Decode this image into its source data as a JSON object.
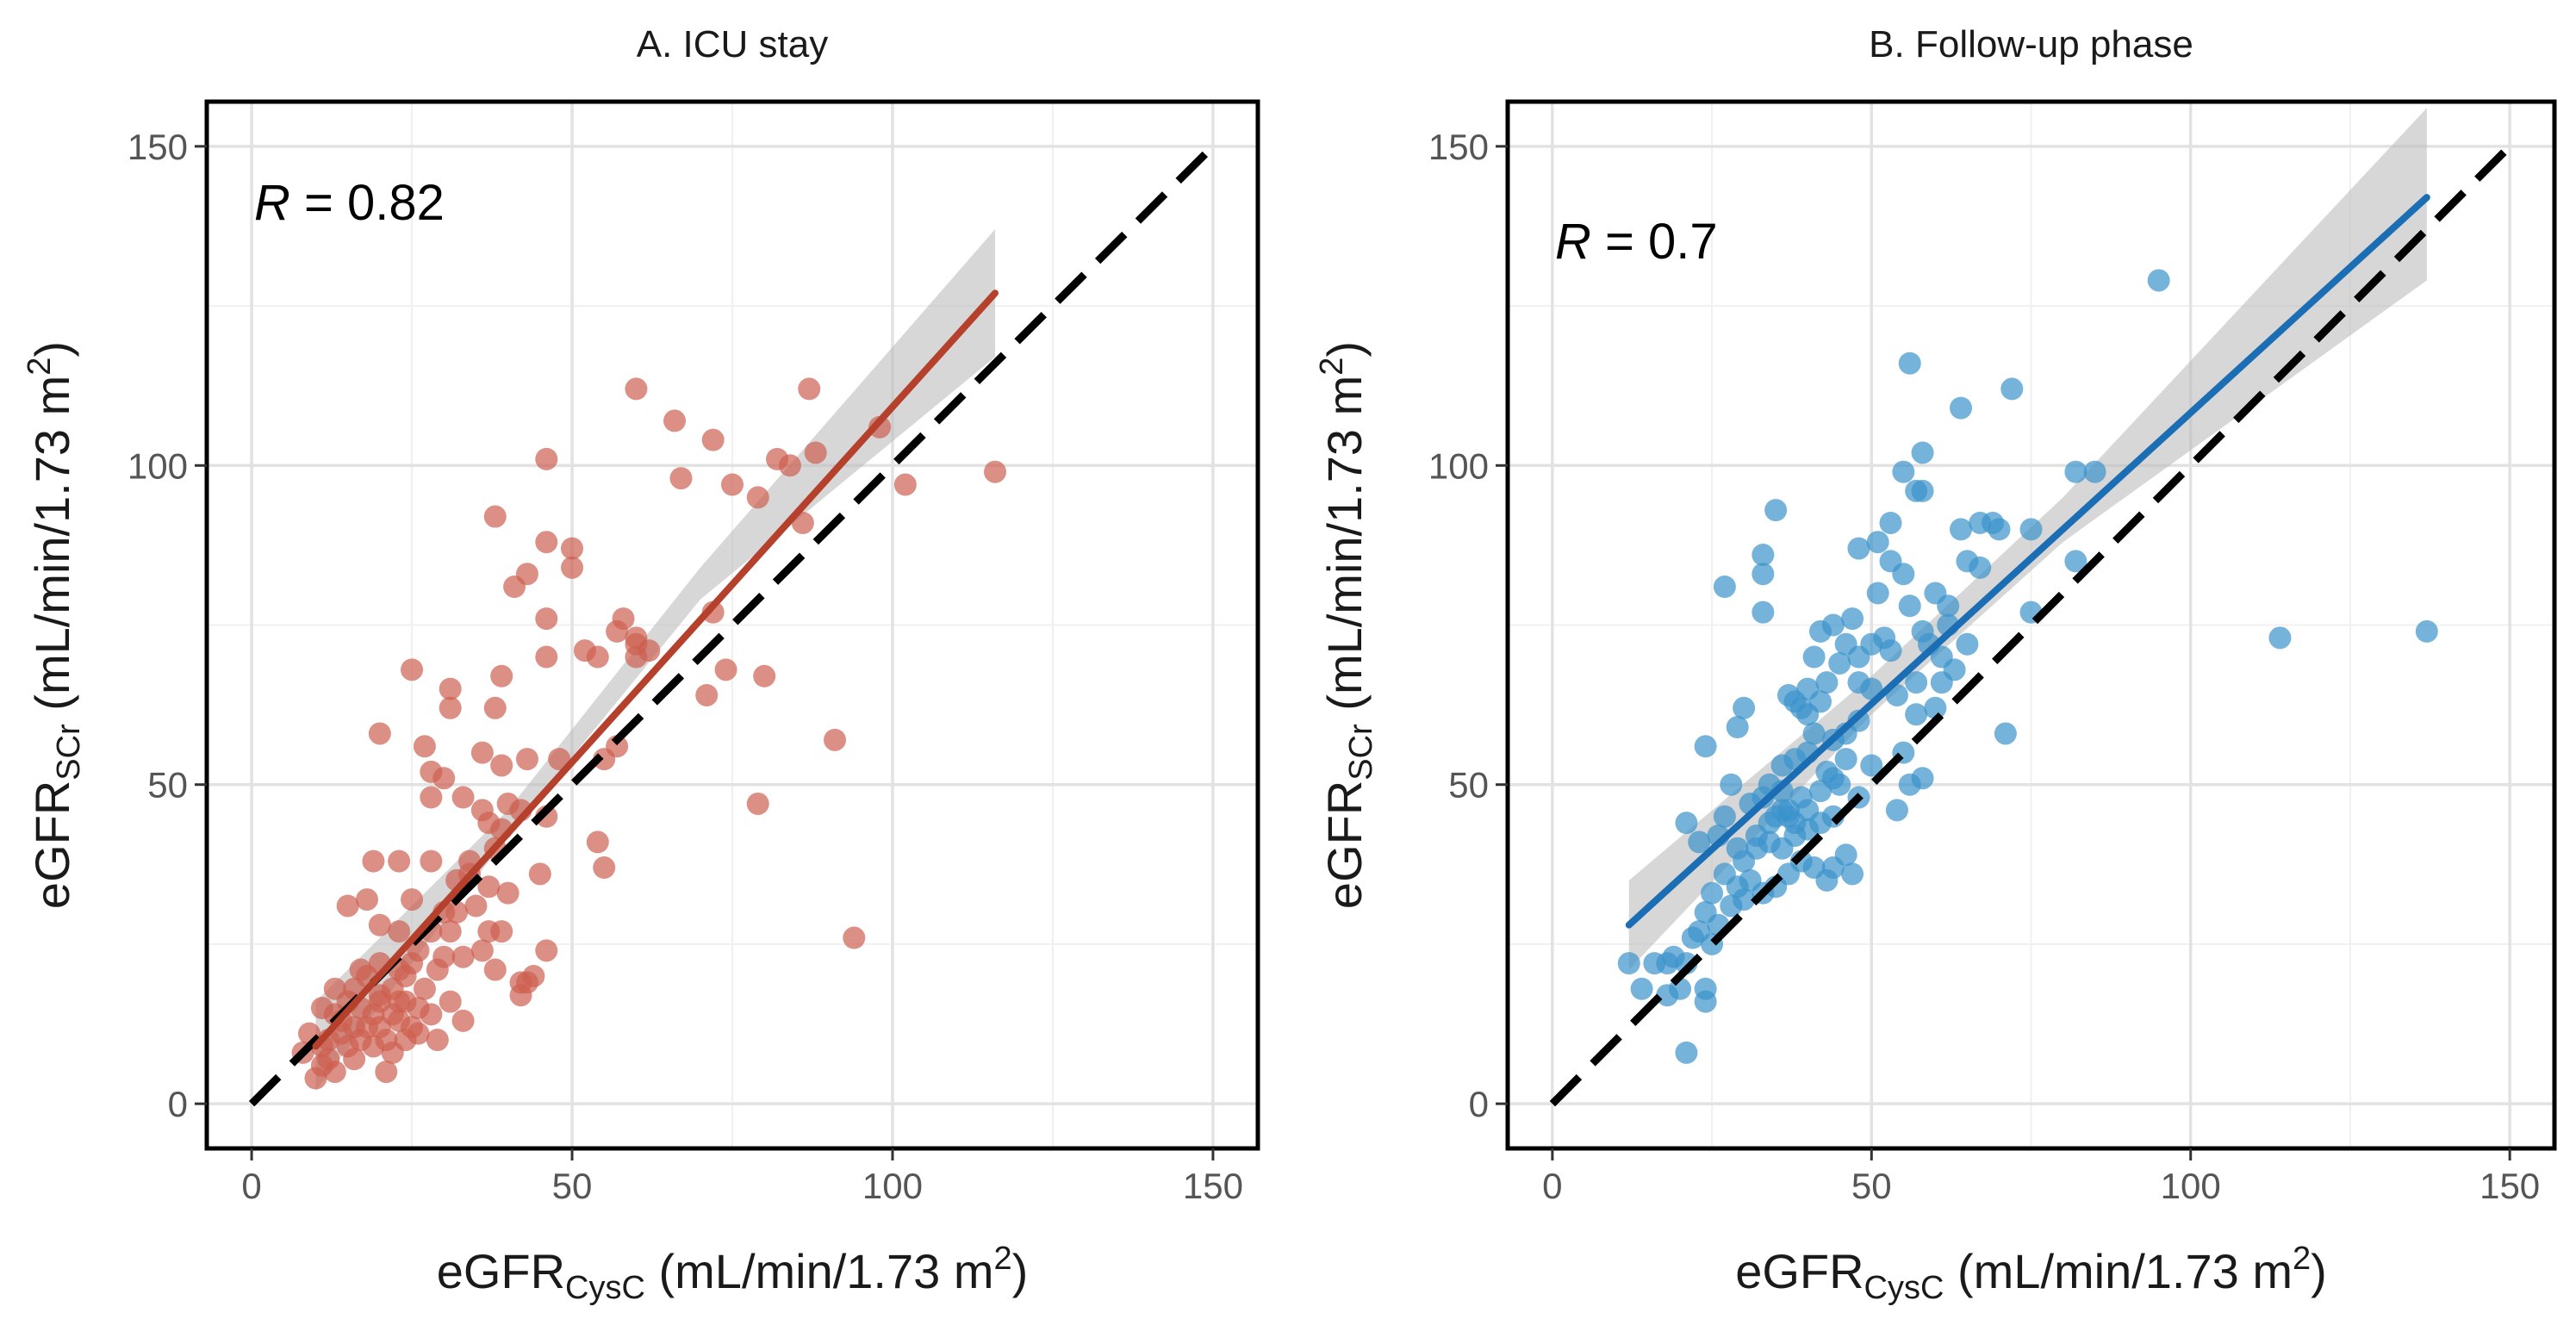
{
  "chart_data": [
    {
      "type": "scatter",
      "panel": "A",
      "title": "A. ICU stay",
      "xlabel_main": "eGFR",
      "xlabel_sub": "CysC",
      "xlabel_unit": "(mL/min/1.73 m",
      "xlabel_sup": "2",
      "xlabel_close": ")",
      "ylabel_main": "eGFR",
      "ylabel_sub": "SCr",
      "ylabel_unit": "(mL/min/1.73 m",
      "ylabel_sup": "2",
      "ylabel_close": ")",
      "xlim": [
        -7,
        157
      ],
      "ylim": [
        -7,
        157
      ],
      "xticks": [
        0,
        50,
        100,
        150
      ],
      "yticks": [
        0,
        50,
        100,
        150
      ],
      "grid": true,
      "r_label": "R",
      "r_value": "= 0.82",
      "identity_line": {
        "x": [
          0,
          150
        ],
        "y": [
          0,
          150
        ],
        "style": "dashed",
        "color": "#000000"
      },
      "fit_line": {
        "x": [
          10,
          116
        ],
        "y": [
          9,
          127
        ],
        "color": "#b5412c"
      },
      "confidence_band": {
        "x": [
          10,
          40,
          70,
          116
        ],
        "lower": [
          2,
          42,
          79,
          117
        ],
        "upper": [
          16,
          46,
          84,
          137
        ]
      },
      "point_color": "#cd6050",
      "points": [
        [
          60,
          112
        ],
        [
          66,
          107
        ],
        [
          72,
          104
        ],
        [
          87,
          112
        ],
        [
          98,
          106
        ],
        [
          102,
          97
        ],
        [
          116,
          99
        ],
        [
          82,
          101
        ],
        [
          84,
          100
        ],
        [
          88,
          102
        ],
        [
          79,
          95
        ],
        [
          86,
          91
        ],
        [
          67,
          98
        ],
        [
          75,
          97
        ],
        [
          46,
          101
        ],
        [
          38,
          92
        ],
        [
          46,
          88
        ],
        [
          50,
          87
        ],
        [
          50,
          84
        ],
        [
          43,
          83
        ],
        [
          41,
          81
        ],
        [
          58,
          76
        ],
        [
          57,
          74
        ],
        [
          60,
          73
        ],
        [
          60,
          72
        ],
        [
          62,
          71
        ],
        [
          60,
          70
        ],
        [
          52,
          71
        ],
        [
          46,
          76
        ],
        [
          72,
          77
        ],
        [
          71,
          64
        ],
        [
          74,
          68
        ],
        [
          80,
          67
        ],
        [
          46,
          70
        ],
        [
          54,
          70
        ],
        [
          57,
          56
        ],
        [
          55,
          54
        ],
        [
          48,
          54
        ],
        [
          43,
          54
        ],
        [
          39,
          53
        ],
        [
          40,
          47
        ],
        [
          42,
          46
        ],
        [
          46,
          45
        ],
        [
          54,
          41
        ],
        [
          55,
          37
        ],
        [
          79,
          47
        ],
        [
          91,
          57
        ],
        [
          94,
          26
        ],
        [
          20,
          58
        ],
        [
          25,
          68
        ],
        [
          31,
          65
        ],
        [
          39,
          67
        ],
        [
          38,
          62
        ],
        [
          31,
          62
        ],
        [
          36,
          55
        ],
        [
          28,
          52
        ],
        [
          30,
          51
        ],
        [
          33,
          48
        ],
        [
          37,
          44
        ],
        [
          39,
          43
        ],
        [
          34,
          36
        ],
        [
          37,
          34
        ],
        [
          40,
          33
        ],
        [
          45,
          36
        ],
        [
          46,
          24
        ],
        [
          36,
          24
        ],
        [
          38,
          21
        ],
        [
          37,
          27
        ],
        [
          39,
          27
        ],
        [
          43,
          19
        ],
        [
          42,
          17
        ],
        [
          42,
          19
        ],
        [
          44,
          20
        ],
        [
          19,
          38
        ],
        [
          23,
          38
        ],
        [
          28,
          38
        ],
        [
          25,
          32
        ],
        [
          18,
          32
        ],
        [
          15,
          31
        ],
        [
          20,
          28
        ],
        [
          23,
          27
        ],
        [
          28,
          27
        ],
        [
          31,
          27
        ],
        [
          35,
          31
        ],
        [
          26,
          24
        ],
        [
          30,
          23
        ],
        [
          33,
          23
        ],
        [
          27,
          18
        ],
        [
          29,
          21
        ],
        [
          31,
          16
        ],
        [
          33,
          13
        ],
        [
          29,
          10
        ],
        [
          26,
          11
        ],
        [
          26,
          15
        ],
        [
          25,
          12
        ],
        [
          23,
          13
        ],
        [
          22,
          8
        ],
        [
          21,
          10
        ],
        [
          20,
          12
        ],
        [
          19,
          14
        ],
        [
          17,
          15
        ],
        [
          16,
          12
        ],
        [
          15,
          9
        ],
        [
          14,
          13
        ],
        [
          13,
          18
        ],
        [
          12,
          10
        ],
        [
          11,
          9
        ],
        [
          11,
          6
        ],
        [
          10,
          4
        ],
        [
          13,
          5
        ],
        [
          9,
          11
        ],
        [
          8,
          8
        ],
        [
          18,
          20
        ],
        [
          20,
          22
        ],
        [
          22,
          18
        ],
        [
          23,
          16
        ],
        [
          24,
          16
        ],
        [
          16,
          7
        ],
        [
          19,
          9
        ],
        [
          24,
          20
        ],
        [
          13,
          14
        ],
        [
          22,
          14
        ],
        [
          16,
          18
        ],
        [
          20,
          16
        ],
        [
          25,
          22
        ],
        [
          28,
          14
        ],
        [
          30,
          30
        ],
        [
          32,
          35
        ],
        [
          34,
          38
        ],
        [
          36,
          46
        ],
        [
          38,
          40
        ],
        [
          28,
          48
        ],
        [
          27,
          56
        ],
        [
          32,
          30
        ],
        [
          24,
          10
        ],
        [
          14,
          11
        ],
        [
          18,
          12
        ],
        [
          20,
          17
        ],
        [
          17,
          21
        ],
        [
          12,
          7
        ],
        [
          15,
          16
        ],
        [
          21,
          5
        ],
        [
          11,
          15
        ],
        [
          17,
          10
        ],
        [
          23,
          21
        ]
      ]
    },
    {
      "type": "scatter",
      "panel": "B",
      "title": "B. Follow-up phase",
      "xlabel_main": "eGFR",
      "xlabel_sub": "CysC",
      "xlabel_unit": "(mL/min/1.73 m",
      "xlabel_sup": "2",
      "xlabel_close": ")",
      "ylabel_main": "eGFR",
      "ylabel_sub": "SCr",
      "ylabel_unit": "(mL/min/1.73 m",
      "ylabel_sup": "2",
      "ylabel_close": ")",
      "xlim": [
        -7,
        157
      ],
      "ylim": [
        -7,
        157
      ],
      "xticks": [
        0,
        50,
        100,
        150
      ],
      "yticks": [
        0,
        50,
        100,
        150
      ],
      "grid": true,
      "r_label": "R",
      "r_value": "= 0.7",
      "identity_line": {
        "x": [
          0,
          150
        ],
        "y": [
          0,
          150
        ],
        "style": "dashed",
        "color": "#000000"
      },
      "fit_line": {
        "x": [
          12,
          137
        ],
        "y": [
          28,
          142
        ],
        "color": "#1c6eb4"
      },
      "confidence_band": {
        "x": [
          12,
          50,
          80,
          137
        ],
        "lower": [
          21,
          61,
          88,
          129
        ],
        "upper": [
          35,
          67,
          95,
          156
        ]
      },
      "point_color": "#3a93cc",
      "points": [
        [
          95,
          129
        ],
        [
          56,
          116
        ],
        [
          72,
          112
        ],
        [
          64,
          109
        ],
        [
          58,
          102
        ],
        [
          55,
          99
        ],
        [
          57,
          96
        ],
        [
          58,
          96
        ],
        [
          53,
          91
        ],
        [
          51,
          88
        ],
        [
          35,
          93
        ],
        [
          33,
          86
        ],
        [
          33,
          83
        ],
        [
          27,
          81
        ],
        [
          33,
          77
        ],
        [
          48,
          87
        ],
        [
          53,
          85
        ],
        [
          55,
          83
        ],
        [
          60,
          80
        ],
        [
          62,
          78
        ],
        [
          64,
          90
        ],
        [
          67,
          91
        ],
        [
          69,
          91
        ],
        [
          70,
          90
        ],
        [
          65,
          85
        ],
        [
          67,
          84
        ],
        [
          75,
          90
        ],
        [
          82,
          99
        ],
        [
          85,
          99
        ],
        [
          82,
          85
        ],
        [
          75,
          77
        ],
        [
          114,
          73
        ],
        [
          137,
          74
        ],
        [
          71,
          58
        ],
        [
          56,
          78
        ],
        [
          58,
          74
        ],
        [
          59,
          72
        ],
        [
          61,
          70
        ],
        [
          63,
          68
        ],
        [
          61,
          66
        ],
        [
          65,
          72
        ],
        [
          62,
          75
        ],
        [
          57,
          61
        ],
        [
          54,
          64
        ],
        [
          52,
          73
        ],
        [
          50,
          72
        ],
        [
          47,
          76
        ],
        [
          44,
          75
        ],
        [
          42,
          74
        ],
        [
          46,
          72
        ],
        [
          45,
          69
        ],
        [
          41,
          70
        ],
        [
          40,
          65
        ],
        [
          38,
          63
        ],
        [
          40,
          61
        ],
        [
          43,
          66
        ],
        [
          48,
          66
        ],
        [
          50,
          65
        ],
        [
          48,
          60
        ],
        [
          46,
          58
        ],
        [
          44,
          57
        ],
        [
          40,
          55
        ],
        [
          38,
          54
        ],
        [
          36,
          53
        ],
        [
          34,
          50
        ],
        [
          33,
          48
        ],
        [
          31,
          47
        ],
        [
          36,
          46
        ],
        [
          37,
          45
        ],
        [
          38,
          44
        ],
        [
          40,
          46
        ],
        [
          42,
          49
        ],
        [
          44,
          51
        ],
        [
          46,
          54
        ],
        [
          48,
          48
        ],
        [
          50,
          53
        ],
        [
          55,
          55
        ],
        [
          56,
          50
        ],
        [
          58,
          51
        ],
        [
          54,
          46
        ],
        [
          46,
          39
        ],
        [
          44,
          37
        ],
        [
          47,
          36
        ],
        [
          43,
          35
        ],
        [
          41,
          37
        ],
        [
          39,
          38
        ],
        [
          37,
          36
        ],
        [
          35,
          34
        ],
        [
          33,
          33
        ],
        [
          31,
          35
        ],
        [
          29,
          34
        ],
        [
          27,
          36
        ],
        [
          25,
          33
        ],
        [
          24,
          30
        ],
        [
          23,
          27
        ],
        [
          26,
          28
        ],
        [
          28,
          31
        ],
        [
          30,
          32
        ],
        [
          30,
          62
        ],
        [
          29,
          59
        ],
        [
          24,
          56
        ],
        [
          21,
          44
        ],
        [
          27,
          45
        ],
        [
          28,
          50
        ],
        [
          26,
          42
        ],
        [
          23,
          41
        ],
        [
          19,
          23
        ],
        [
          21,
          22
        ],
        [
          20,
          18
        ],
        [
          18,
          17
        ],
        [
          24,
          18
        ],
        [
          22,
          26
        ],
        [
          25,
          25
        ],
        [
          24,
          16
        ],
        [
          21,
          8
        ],
        [
          12,
          22
        ],
        [
          14,
          18
        ],
        [
          16,
          22
        ],
        [
          18,
          22
        ],
        [
          32,
          40
        ],
        [
          34,
          41
        ],
        [
          36,
          40
        ],
        [
          38,
          42
        ],
        [
          40,
          43
        ],
        [
          42,
          44
        ],
        [
          44,
          45
        ],
        [
          36,
          49
        ],
        [
          35,
          45
        ],
        [
          34,
          44
        ],
        [
          37,
          46
        ],
        [
          39,
          48
        ],
        [
          30,
          38
        ],
        [
          32,
          42
        ],
        [
          29,
          40
        ],
        [
          43,
          52
        ],
        [
          45,
          50
        ],
        [
          41,
          58
        ],
        [
          39,
          62
        ],
        [
          37,
          64
        ],
        [
          42,
          63
        ],
        [
          48,
          70
        ],
        [
          51,
          80
        ],
        [
          53,
          71
        ],
        [
          57,
          66
        ],
        [
          60,
          62
        ]
      ]
    }
  ]
}
